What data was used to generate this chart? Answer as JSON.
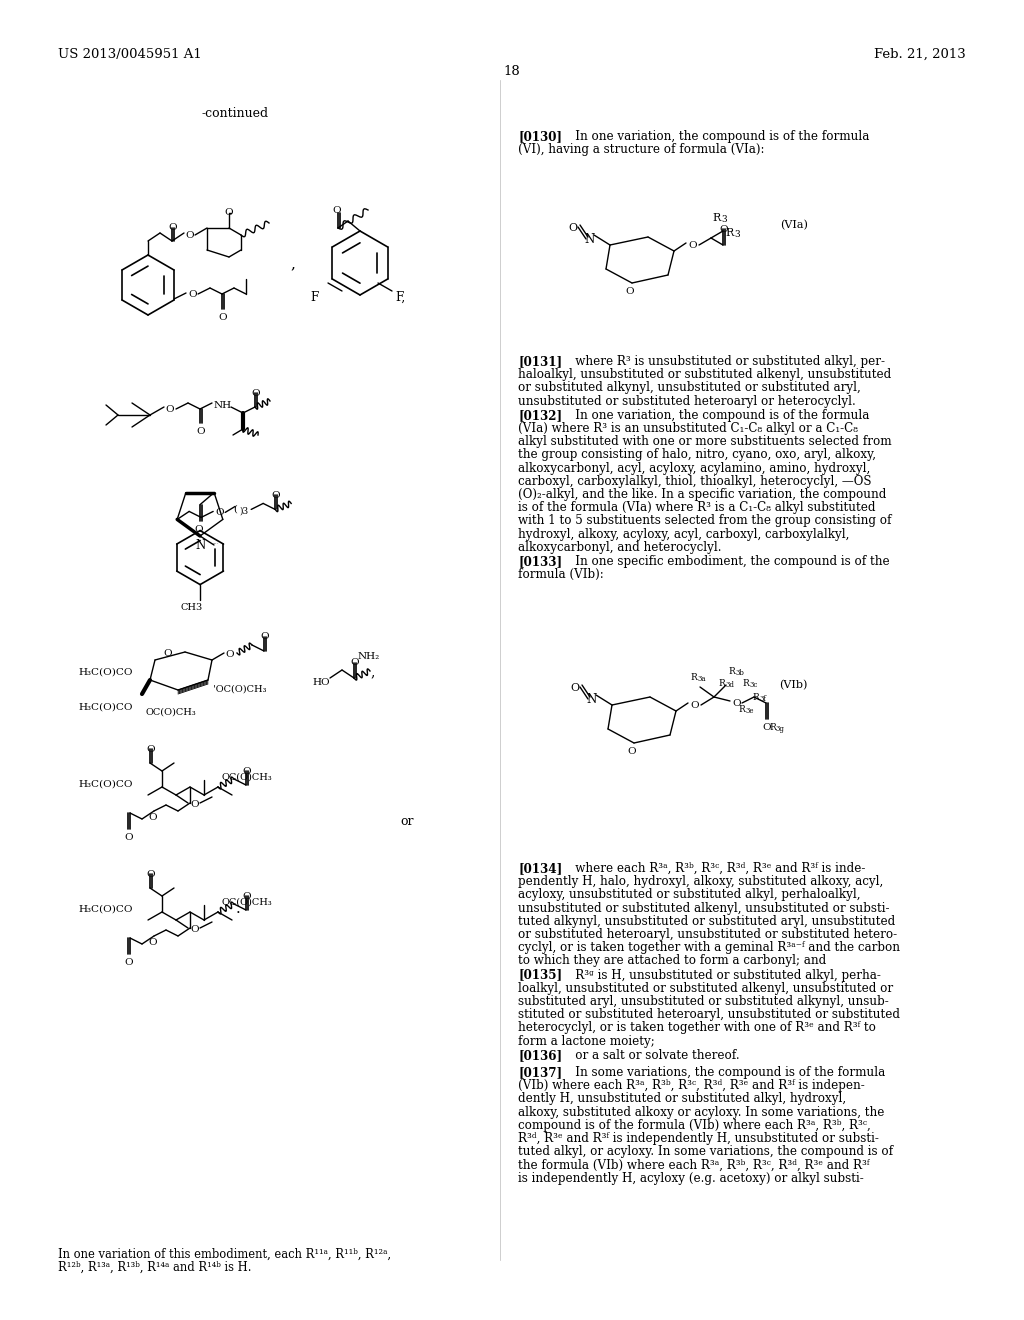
{
  "page_number": "18",
  "patent_number": "US 2013/0045951 A1",
  "date": "Feb. 21, 2013",
  "bg_color": "#ffffff"
}
